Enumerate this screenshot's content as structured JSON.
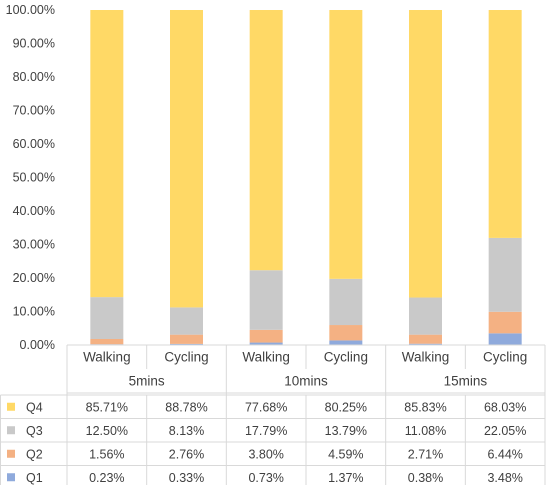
{
  "chart_data": {
    "type": "bar",
    "stacked": true,
    "percent_stacked": true,
    "grid": false,
    "legend_placement": "left of data table",
    "ylim": [
      0,
      100
    ],
    "y_ticks": [
      "0.00%",
      "10.00%",
      "20.00%",
      "30.00%",
      "40.00%",
      "50.00%",
      "60.00%",
      "70.00%",
      "80.00%",
      "90.00%",
      "100.00%"
    ],
    "groups": [
      "5mins",
      "10mins",
      "15mins"
    ],
    "categories": [
      "Walking",
      "Cycling",
      "Walking",
      "Cycling",
      "Walking",
      "Cycling"
    ],
    "series": [
      {
        "name": "Q1",
        "color": "#8faadc",
        "values": [
          0.23,
          0.33,
          0.73,
          1.37,
          0.38,
          3.48
        ],
        "labels": [
          "0.23%",
          "0.33%",
          "0.73%",
          "1.37%",
          "0.38%",
          "3.48%"
        ]
      },
      {
        "name": "Q2",
        "color": "#f4b183",
        "values": [
          1.56,
          2.76,
          3.8,
          4.59,
          2.71,
          6.44
        ],
        "labels": [
          "1.56%",
          "2.76%",
          "3.80%",
          "4.59%",
          "2.71%",
          "6.44%"
        ]
      },
      {
        "name": "Q3",
        "color": "#c9c9c9",
        "values": [
          12.5,
          8.13,
          17.79,
          13.79,
          11.08,
          22.05
        ],
        "labels": [
          "12.50%",
          "8.13%",
          "17.79%",
          "13.79%",
          "11.08%",
          "22.05%"
        ]
      },
      {
        "name": "Q4",
        "color": "#ffd966",
        "values": [
          85.71,
          88.78,
          77.68,
          80.25,
          85.83,
          68.03
        ],
        "labels": [
          "85.71%",
          "88.78%",
          "77.68%",
          "80.25%",
          "85.83%",
          "68.03%"
        ]
      }
    ]
  }
}
